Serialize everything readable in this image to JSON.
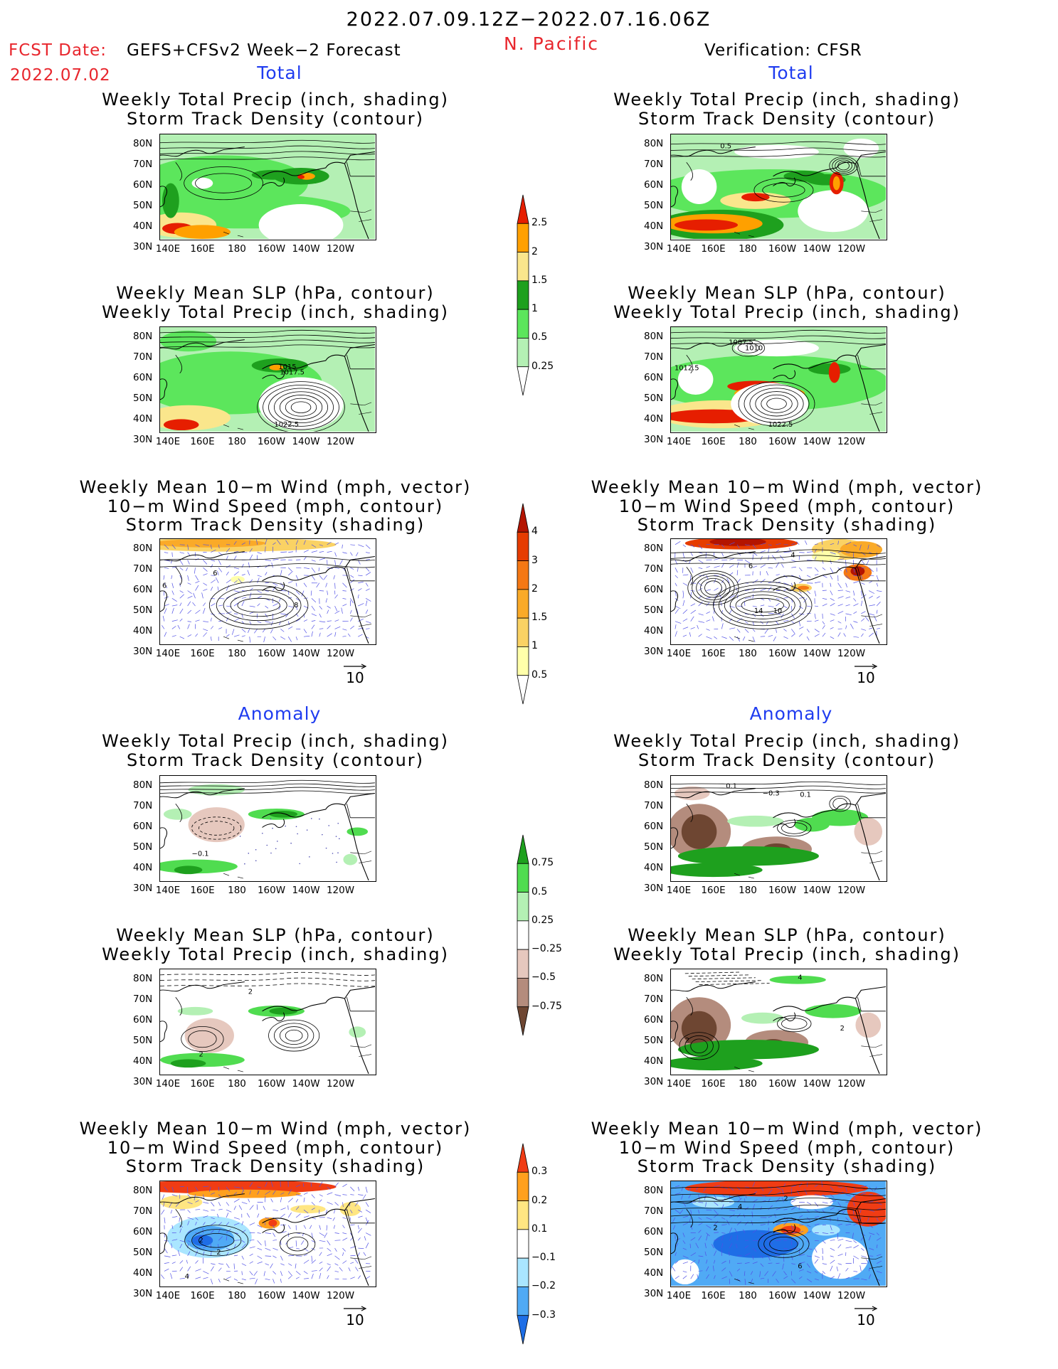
{
  "header": {
    "period": "2022.07.09.12Z−2022.07.16.06Z",
    "region": "N. Pacific",
    "fcst_date_label": "FCST Date:",
    "fcst_model": "GEFS+CFSv2 Week−2 Forecast",
    "fcst_date": "2022.07.02",
    "verification": "Verification: CFSR"
  },
  "sections": {
    "total": "Total",
    "anomaly": "Anomaly"
  },
  "panel_titles": {
    "precip_storm": [
      "Weekly Total Precip (inch, shading)",
      "Storm Track Density (contour)"
    ],
    "slp_precip": [
      "Weekly Mean SLP (hPa, contour)",
      "Weekly Total Precip (inch, shading)"
    ],
    "wind_storm": [
      "Weekly Mean 10−m Wind (mph, vector)",
      "10−m Wind Speed (mph, contour)",
      "Storm Track Density (shading)"
    ]
  },
  "axes": {
    "y_ticks": [
      "80N",
      "70N",
      "60N",
      "50N",
      "40N",
      "30N"
    ],
    "x_ticks": [
      "140E",
      "160E",
      "180",
      "160W",
      "140W",
      "120W"
    ]
  },
  "vector_reference": "10",
  "colorbars": {
    "precip_total": {
      "labels": [
        "0.25",
        "0.5",
        "1",
        "1.5",
        "2",
        "2.5"
      ],
      "colors": [
        "#ffffff",
        "#b4f0b4",
        "#5ce65c",
        "#1ea01e",
        "#fae68c",
        "#ffa000",
        "#e61e00"
      ]
    },
    "storm_total": {
      "labels": [
        "0.5",
        "1",
        "1.5",
        "2",
        "3",
        "4"
      ],
      "colors": [
        "#ffffff",
        "#ffffaa",
        "#fad264",
        "#faaa28",
        "#f57814",
        "#e63c00",
        "#b41400"
      ]
    },
    "precip_anom": {
      "labels": [
        "0.75",
        "0.5",
        "0.25",
        "−0.25",
        "−0.5",
        "−0.75"
      ],
      "colors": [
        "#1ea01e",
        "#50dc50",
        "#b4f0b4",
        "#ffffff",
        "#e6c8be",
        "#b48c7d",
        "#6e4632"
      ]
    },
    "storm_anom": {
      "labels": [
        "0.3",
        "0.2",
        "0.1",
        "−0.1",
        "−0.2",
        "−0.3"
      ],
      "colors": [
        "#f03c14",
        "#ffa01e",
        "#ffe682",
        "#ffffff",
        "#aae6ff",
        "#50aaf5",
        "#1e6ee6"
      ]
    }
  },
  "contour_labels": {
    "left_total_slp": [
      "1015",
      "1017.5",
      "1022.5"
    ],
    "right_total_storm": [
      "0.5"
    ],
    "right_total_slp": [
      "1007.5",
      "1010",
      "1012.5",
      "1022.5"
    ],
    "left_total_wind": [
      "6",
      "6",
      "8"
    ],
    "right_total_wind": [
      "4",
      "6",
      "14",
      "10"
    ],
    "left_anom_storm": [
      "−0.1"
    ],
    "right_anom_storm": [
      "0.1",
      "−0.3",
      "0.1"
    ],
    "left_anom_slp": [
      "2",
      "2"
    ],
    "right_anom_slp": [
      "4",
      "2",
      "2"
    ],
    "left_anom_wind": [
      "2",
      "2",
      "4"
    ],
    "right_anom_wind": [
      "2",
      "4",
      "2",
      "6"
    ]
  }
}
